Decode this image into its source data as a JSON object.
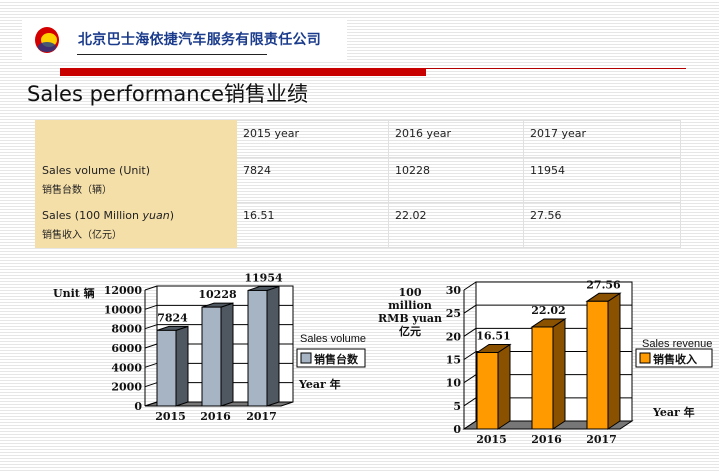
{
  "header": {
    "company": "北京巴士海依捷汽车服务有限责任公司",
    "title": "Sales performance销售业绩",
    "accent": "#c80000"
  },
  "table": {
    "columns": [
      "",
      "2015 year",
      "2016 year",
      "2017 year"
    ],
    "rows": [
      {
        "label": "Sales volume (Unit)",
        "label_cn": "销售台数（辆）",
        "values": [
          "7824",
          "10228",
          "11954"
        ]
      },
      {
        "label_pre": "Sales (100 Million ",
        "label_em": "yuan",
        "label_post": ")",
        "label_cn": "销售收入（亿元）",
        "values": [
          "16.51",
          "22.02",
          "27.56"
        ]
      }
    ]
  },
  "chart_data": [
    {
      "type": "bar",
      "categories": [
        "2015",
        "2016",
        "2017"
      ],
      "values": [
        7824,
        10228,
        11954
      ],
      "ylabel": "Unit 辆",
      "xlabel": "Year 年",
      "legend_title": "Sales volume",
      "series": [
        {
          "name": "销售台数",
          "values": [
            7824,
            10228,
            11954
          ]
        }
      ],
      "ylim": [
        0,
        12000
      ],
      "yticks": [
        0,
        2000,
        4000,
        6000,
        8000,
        10000,
        12000
      ],
      "data_labels": [
        "7824",
        "10228",
        "11954"
      ],
      "color": "#a6b4c4",
      "side_color": "#4f5860",
      "grid": true,
      "legend": "right",
      "style": "3d"
    },
    {
      "type": "bar",
      "categories": [
        "2015",
        "2016",
        "2017"
      ],
      "values": [
        16.51,
        22.02,
        27.56
      ],
      "ylabel": [
        "100",
        "million",
        "RMB yuan",
        "亿元"
      ],
      "xlabel": "Year 年",
      "legend_title": "Sales revenue",
      "series": [
        {
          "name": "销售收入",
          "values": [
            16.51,
            22.02,
            27.56
          ]
        }
      ],
      "ylim": [
        0,
        30
      ],
      "yticks": [
        0,
        5,
        10,
        15,
        20,
        25,
        30
      ],
      "data_labels": [
        "16.51",
        "22.02",
        "27.56"
      ],
      "color": "#ff9a00",
      "side_color": "#8a5200",
      "grid": true,
      "legend": "right",
      "style": "3d"
    }
  ]
}
